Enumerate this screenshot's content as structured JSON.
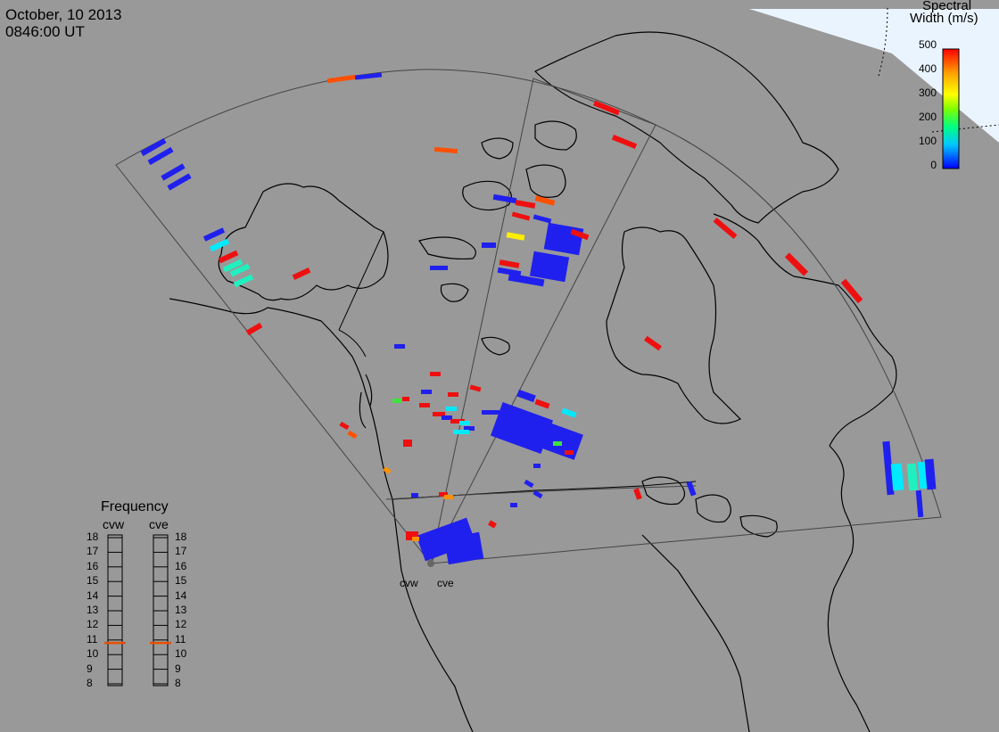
{
  "header": {
    "date": "October, 10 2013",
    "time": "0846:00 UT"
  },
  "colorbar": {
    "title_line1": "Spectral",
    "title_line2": "Width (m/s)",
    "ticks": [
      "500",
      "400",
      "300",
      "200",
      "100",
      "0"
    ],
    "range": [
      0,
      500
    ],
    "colors": [
      "#0000ff",
      "#00c8ff",
      "#00ff80",
      "#80ff00",
      "#ffff00",
      "#ffa000",
      "#ff0000"
    ]
  },
  "frequency_panel": {
    "title": "Frequency",
    "left_label": "cvw",
    "right_label": "cve",
    "ticks": [
      "18",
      "17",
      "16",
      "15",
      "14",
      "13",
      "12",
      "11",
      "10",
      "9",
      "8"
    ],
    "cvw_value": 10.8,
    "cve_value": 10.8,
    "marker_color": "#e65000"
  },
  "radars": [
    {
      "name": "cvw"
    },
    {
      "name": "cve"
    }
  ],
  "colors": {
    "background": "#999999",
    "ocean_ice": "#eaf4ff",
    "outline": "#000000"
  }
}
